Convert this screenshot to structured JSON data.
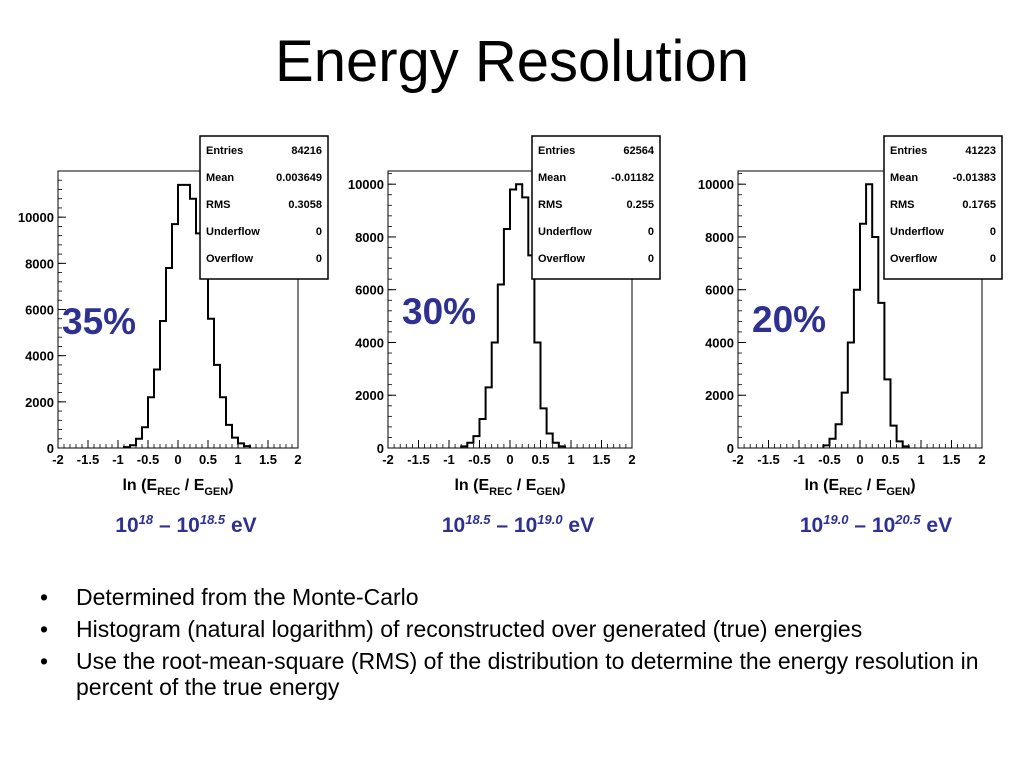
{
  "title": "Energy Resolution",
  "chart_data": [
    {
      "type": "histogram",
      "xlabel": {
        "main": "ln (E",
        "sub1": "REC",
        "mid": " / E",
        "sub2": "GEN",
        "end": ")"
      },
      "xlim": [
        -2,
        2
      ],
      "ylim": [
        0,
        12000
      ],
      "xticks": [
        "-2",
        "-1.5",
        "-1",
        "-0.5",
        "0",
        "0.5",
        "1",
        "1.5",
        "2"
      ],
      "yticks": [
        0,
        2000,
        4000,
        6000,
        8000,
        10000
      ],
      "ytick_labels": [
        "0",
        "2000",
        "4000",
        "6000",
        "8000",
        "10000"
      ],
      "bin_width": 0.1,
      "bins_start": -0.9,
      "bin_values": [
        40,
        120,
        400,
        900,
        2200,
        3400,
        5500,
        7800,
        9700,
        11400,
        11400,
        10800,
        9300,
        7800,
        5600,
        3600,
        2200,
        1000,
        450,
        200,
        80
      ],
      "stats": {
        "Entries": "84216",
        "Mean": "0.003649",
        "RMS": "0.3058",
        "Underflow": "0",
        "Overflow": "0"
      },
      "stats_labels": [
        "Entries",
        "Mean",
        "RMS",
        "Underflow",
        "Overflow"
      ],
      "resolution": "35%",
      "energy_range": {
        "base1": "10",
        "exp1": "18",
        "dash": " – ",
        "base2": "10",
        "exp2": "18.5",
        "unit": " eV"
      }
    },
    {
      "type": "histogram",
      "xlabel": {
        "main": "ln (E",
        "sub1": "REC",
        "mid": " / E",
        "sub2": "GEN",
        "end": ")"
      },
      "xlim": [
        -2,
        2
      ],
      "ylim": [
        0,
        10500
      ],
      "xticks": [
        "-2",
        "-1.5",
        "-1",
        "-0.5",
        "0",
        "0.5",
        "1",
        "1.5",
        "2"
      ],
      "yticks": [
        0,
        2000,
        4000,
        6000,
        8000,
        10000
      ],
      "ytick_labels": [
        "0",
        "2000",
        "4000",
        "6000",
        "8000",
        "10000"
      ],
      "bin_width": 0.1,
      "bins_start": -0.8,
      "bin_values": [
        60,
        200,
        450,
        1100,
        2300,
        4000,
        6200,
        8300,
        9800,
        10000,
        9500,
        7300,
        4000,
        1500,
        550,
        200,
        60
      ],
      "stats": {
        "Entries": "62564",
        "Mean": "-0.01182",
        "RMS": "0.255",
        "Underflow": "0",
        "Overflow": "0"
      },
      "stats_labels": [
        "Entries",
        "Mean",
        "RMS",
        "Underflow",
        "Overflow"
      ],
      "resolution": "30%",
      "energy_range": {
        "base1": "10",
        "exp1": "18.5",
        "dash": " – ",
        "base2": "10",
        "exp2": "19.0",
        "unit": " eV"
      }
    },
    {
      "type": "histogram",
      "xlabel": {
        "main": "ln (E",
        "sub1": "REC",
        "mid": " / E",
        "sub2": "GEN",
        "end": ")"
      },
      "xlim": [
        -2,
        2
      ],
      "ylim": [
        0,
        10500
      ],
      "xticks": [
        "-2",
        "-1.5",
        "-1",
        "-0.5",
        "0",
        "0.5",
        "1",
        "1.5",
        "2"
      ],
      "yticks": [
        0,
        2000,
        4000,
        6000,
        8000,
        10000
      ],
      "ytick_labels": [
        "0",
        "2000",
        "4000",
        "6000",
        "8000",
        "10000"
      ],
      "bin_width": 0.1,
      "bins_start": -0.6,
      "bin_values": [
        100,
        350,
        900,
        2100,
        4000,
        6000,
        8500,
        10000,
        8000,
        5500,
        2600,
        850,
        250,
        60
      ],
      "stats": {
        "Entries": "41223",
        "Mean": "-0.01383",
        "RMS": "0.1765",
        "Underflow": "0",
        "Overflow": "0"
      },
      "stats_labels": [
        "Entries",
        "Mean",
        "RMS",
        "Underflow",
        "Overflow"
      ],
      "resolution": "20%",
      "energy_range": {
        "base1": "10",
        "exp1": "19.0",
        "dash": " – ",
        "base2": "10",
        "exp2": "20.5",
        "unit": " eV"
      }
    }
  ],
  "bullets": [
    "Determined from the Monte-Carlo",
    "Histogram (natural logarithm) of reconstructed over generated (true) energies",
    "Use the root-mean-square (RMS) of the distribution to determine the energy resolution in percent of the true energy"
  ],
  "bullet_symbol": "•",
  "colors": {
    "accent": "#2e3192",
    "ink": "#000000"
  }
}
